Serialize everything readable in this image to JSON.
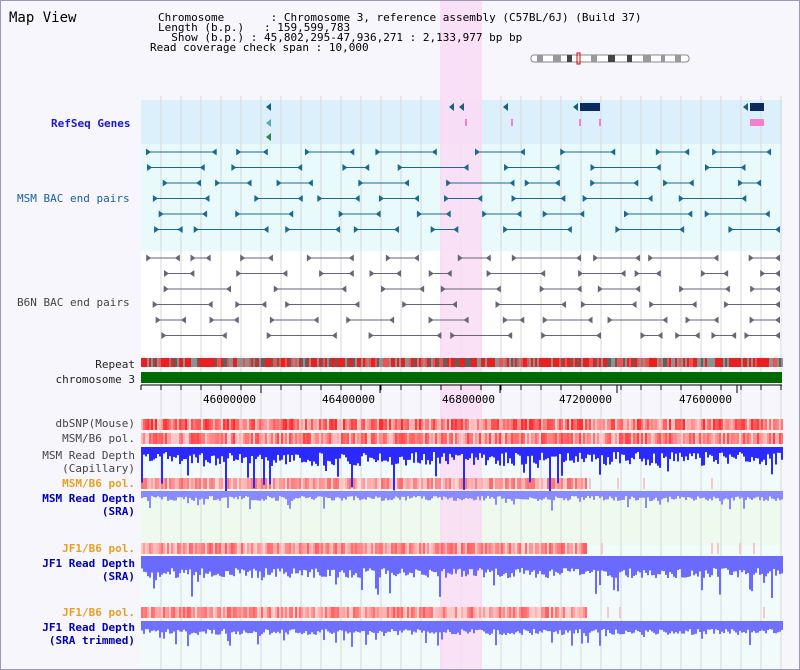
{
  "title": "Map View",
  "info": {
    "chromosome_key": "Chromosome",
    "chromosome_val": "Chromosome 3, reference assembly (C57BL/6J) (Build 37)",
    "length_key": "Length (b.p.)",
    "length_val": "159,599,783",
    "show_key": "Show (b.p.)",
    "show_val": "45,802,295-47,936,271 : 2,133,977 bp",
    "coverage_key": "Read coverage check span",
    "coverage_val": "10,000"
  },
  "tracks": {
    "refseq": "RefSeq Genes",
    "msm_bac": "MSM BAC end pairs",
    "b6n_bac": "B6N BAC end pairs",
    "repeat": "Repeat",
    "chromosome": "chromosome 3",
    "dbsnp": "dbSNP(Mouse)",
    "msm_b6_pol": "MSM/B6 pol.",
    "msm_read_depth_cap_1": "MSM Read Depth",
    "msm_read_depth_cap_2": "(Capillary)",
    "msm_b6_pol_2": "MSM/B6 pol.",
    "msm_read_depth_sra_1": "MSM Read Depth",
    "msm_read_depth_sra_2": "(SRA)",
    "jf1_b6_pol": "JF1/B6 pol.",
    "jf1_read_depth_sra_1": "JF1 Read Depth",
    "jf1_read_depth_sra_2": "(SRA)",
    "jf1_b6_pol_2": "JF1/B6 pol.",
    "jf1_read_depth_trim_1": "JF1 Read Depth",
    "jf1_read_depth_trim_2": "(SRA trimmed)"
  },
  "axis": {
    "ticks": [
      "46000000",
      "46400000",
      "46800000",
      "47200000",
      "47600000"
    ]
  },
  "colors": {
    "refseq_bg": "#dcf0fc",
    "msm_bg": "#e8fafc",
    "highlight": "#fadcf4",
    "chrom_bar": "#006a00",
    "depth_blue": "#2a2aff",
    "pol_red": "#e83030"
  }
}
